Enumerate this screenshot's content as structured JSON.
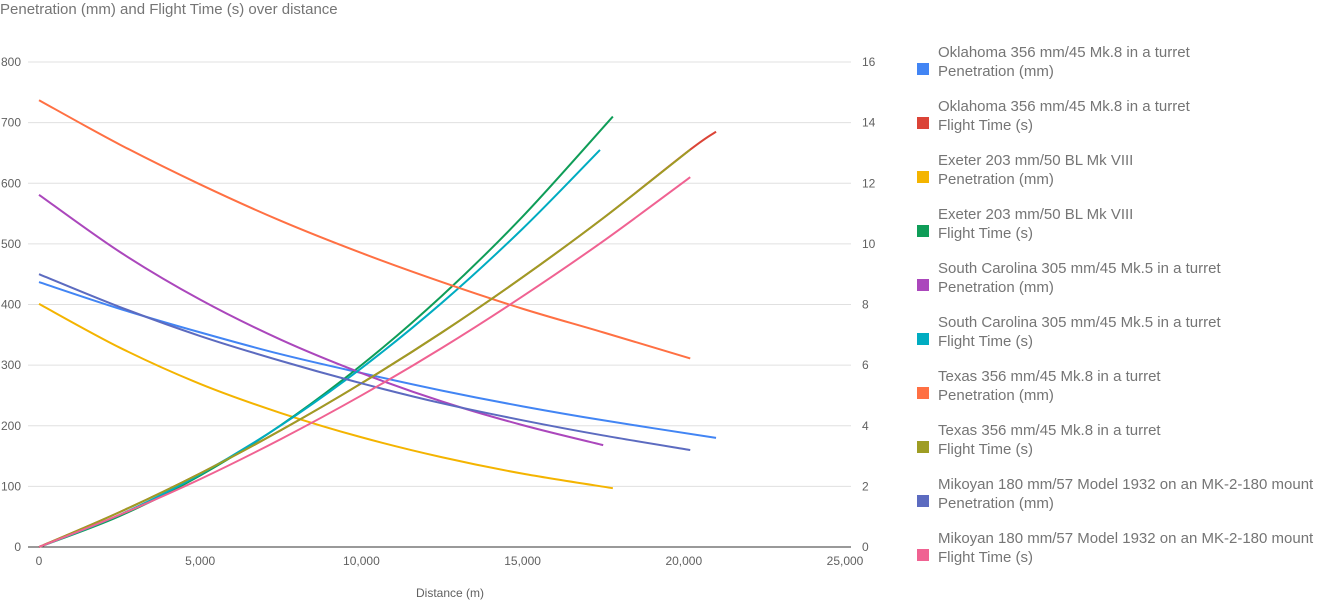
{
  "chart_data": {
    "type": "line",
    "title": "Penetration (mm) and Flight Time (s) over distance",
    "xlabel": "Distance (m)",
    "ylabel_left": "",
    "ylabel_right": "",
    "xlim": [
      0,
      25000
    ],
    "ylim_left": [
      0,
      800
    ],
    "ylim_right": [
      0,
      16
    ],
    "x_ticks": [
      "0",
      "5,000",
      "10,000",
      "15,000",
      "20,000",
      "25,000"
    ],
    "x_tick_values": [
      0,
      5000,
      10000,
      15000,
      20000,
      25000
    ],
    "y_left_ticks": [
      "0",
      "100",
      "200",
      "300",
      "400",
      "500",
      "600",
      "700",
      "800"
    ],
    "y_right_ticks": [
      "0",
      "2",
      "4",
      "6",
      "8",
      "10",
      "12",
      "14",
      "16"
    ],
    "grid": true,
    "legend_position": "right",
    "series": [
      {
        "name_line1": "Oklahoma 356 mm/45 Mk.8 in a turret",
        "name_line2": "Penetration (mm)",
        "axis": "left",
        "color": "#4285f4",
        "x": [
          0,
          2500,
          5000,
          7500,
          10000,
          12500,
          15000,
          17500,
          21000
        ],
        "y": [
          437,
          393,
          354,
          318,
          287,
          258,
          232,
          209,
          180
        ]
      },
      {
        "name_line1": "Oklahoma 356 mm/45 Mk.8 in a turret",
        "name_line2": "Flight Time (s)",
        "axis": "right",
        "color": "#db4437",
        "x": [
          0,
          2500,
          5000,
          7500,
          10000,
          12500,
          15000,
          17500,
          20200,
          21000
        ],
        "y": [
          0,
          1.15,
          2.43,
          3.85,
          5.4,
          7.08,
          8.9,
          10.85,
          13.11,
          13.7
        ]
      },
      {
        "name_line1": "Exeter 203 mm/50 BL Mk VIII",
        "name_line2": "Penetration (mm)",
        "axis": "left",
        "color": "#f4b400",
        "x": [
          0,
          2500,
          5000,
          7500,
          10000,
          12500,
          15000,
          17800
        ],
        "y": [
          401,
          329,
          269,
          221,
          181,
          148,
          121,
          97
        ]
      },
      {
        "name_line1": "Exeter 203 mm/50 BL Mk VIII",
        "name_line2": "Flight Time (s)",
        "axis": "right",
        "color": "#0f9d58",
        "x": [
          0,
          2500,
          5000,
          7500,
          10000,
          12500,
          15000,
          17800
        ],
        "y": [
          0,
          1.02,
          2.36,
          4.02,
          6.0,
          8.29,
          10.9,
          14.2
        ]
      },
      {
        "name_line1": "South Carolina 305 mm/45 Mk.5 in a turret",
        "name_line2": "Penetration (mm)",
        "axis": "left",
        "color": "#ab47bc",
        "x": [
          0,
          2500,
          5000,
          7500,
          10000,
          12500,
          15000,
          17500
        ],
        "y": [
          581,
          487,
          408,
          342,
          287,
          240,
          201,
          168
        ]
      },
      {
        "name_line1": "South Carolina 305 mm/45 Mk.5 in a turret",
        "name_line2": "Flight Time (s)",
        "axis": "right",
        "color": "#00acc1",
        "x": [
          0,
          2500,
          5000,
          7500,
          10000,
          12500,
          15000,
          17400
        ],
        "y": [
          0,
          1.06,
          2.4,
          4.01,
          5.9,
          8.06,
          10.5,
          13.1
        ]
      },
      {
        "name_line1": "Texas 356 mm/45 Mk.8 in a turret",
        "name_line2": "Penetration (mm)",
        "axis": "left",
        "color": "#ff7043",
        "x": [
          0,
          2500,
          5000,
          7500,
          10000,
          12500,
          15000,
          17500,
          20200
        ],
        "y": [
          737,
          664,
          598,
          538,
          485,
          437,
          393,
          354,
          311
        ]
      },
      {
        "name_line1": "Texas 356 mm/45 Mk.8 in a turret",
        "name_line2": "Flight Time (s)",
        "axis": "right",
        "color": "#9e9d24",
        "x": [
          0,
          2500,
          5000,
          7500,
          10000,
          12500,
          15000,
          17500,
          20200
        ],
        "y": [
          0,
          1.15,
          2.43,
          3.85,
          5.4,
          7.08,
          8.9,
          10.85,
          13.11
        ]
      },
      {
        "name_line1": "Mikoyan 180 mm/57 Model 1932 on an MK-2-180 mount",
        "name_line2": "Penetration (mm)",
        "axis": "left",
        "color": "#5c6bc0",
        "x": [
          0,
          2500,
          5000,
          7500,
          10000,
          12500,
          15000,
          17500,
          20200
        ],
        "y": [
          450,
          396,
          348,
          307,
          270,
          237,
          209,
          184,
          160
        ]
      },
      {
        "name_line1": "Mikoyan 180 mm/57 Model 1932 on an MK-2-180 mount",
        "name_line2": "Flight Time (s)",
        "axis": "right",
        "color": "#f06292",
        "x": [
          0,
          2500,
          5000,
          7500,
          10000,
          12500,
          15000,
          17500,
          20200
        ],
        "y": [
          0,
          1.06,
          2.24,
          3.56,
          5.0,
          6.57,
          8.27,
          10.09,
          12.2
        ]
      }
    ]
  }
}
